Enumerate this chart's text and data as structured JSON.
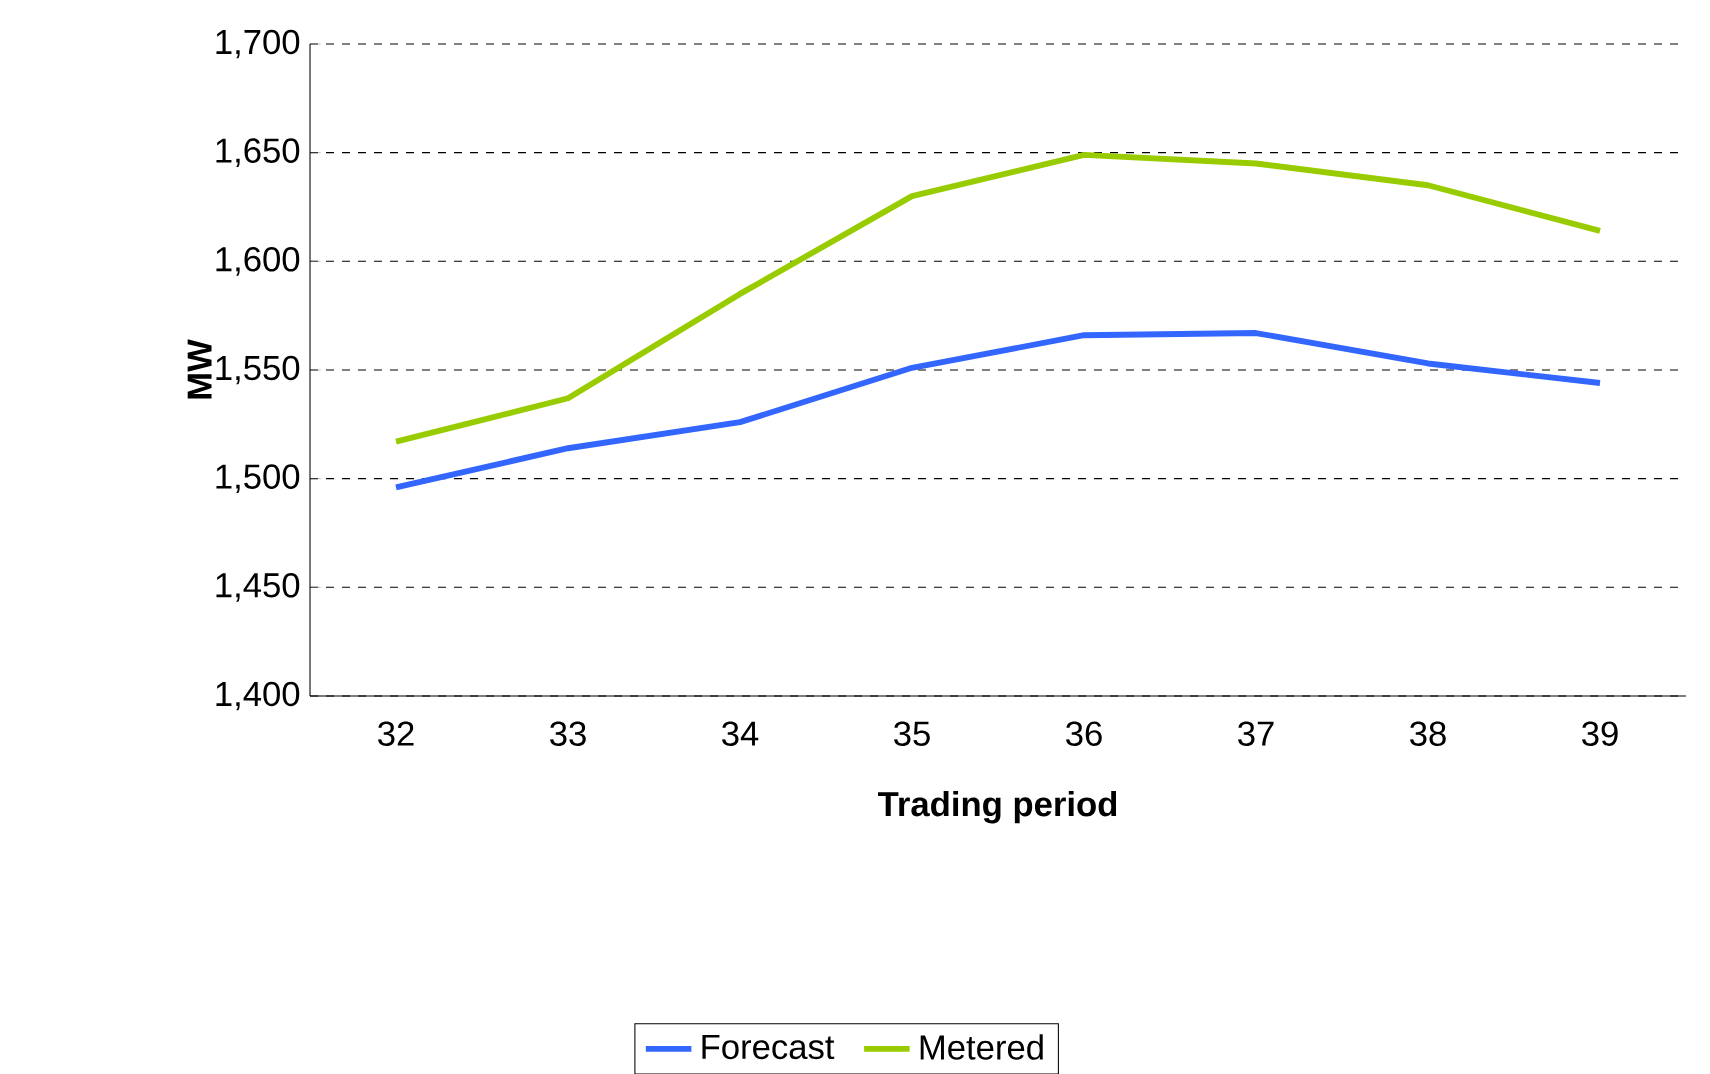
{
  "chart_data": {
    "type": "line",
    "xlabel": "Trading period",
    "ylabel": "MW",
    "categories": [
      "32",
      "33",
      "34",
      "35",
      "36",
      "37",
      "38",
      "39"
    ],
    "series": [
      {
        "name": "Forecast",
        "color": "#3366ff",
        "values": [
          1496,
          1514,
          1526,
          1551,
          1566,
          1567,
          1553,
          1544
        ]
      },
      {
        "name": "Metered",
        "color": "#99cc00",
        "values": [
          1517,
          1537,
          1585,
          1630,
          1649,
          1645,
          1635,
          1614
        ]
      }
    ],
    "ylim": [
      1400,
      1700
    ],
    "yticks": [
      {
        "value": 1400,
        "label": "1,400"
      },
      {
        "value": 1450,
        "label": "1,450"
      },
      {
        "value": 1500,
        "label": "1,500"
      },
      {
        "value": 1550,
        "label": "1,550"
      },
      {
        "value": 1600,
        "label": "1,600"
      },
      {
        "value": 1650,
        "label": "1,650"
      },
      {
        "value": 1700,
        "label": "1,700"
      }
    ],
    "grid": "y",
    "legend": "bottom",
    "marker": "none",
    "line_style": "solid"
  }
}
